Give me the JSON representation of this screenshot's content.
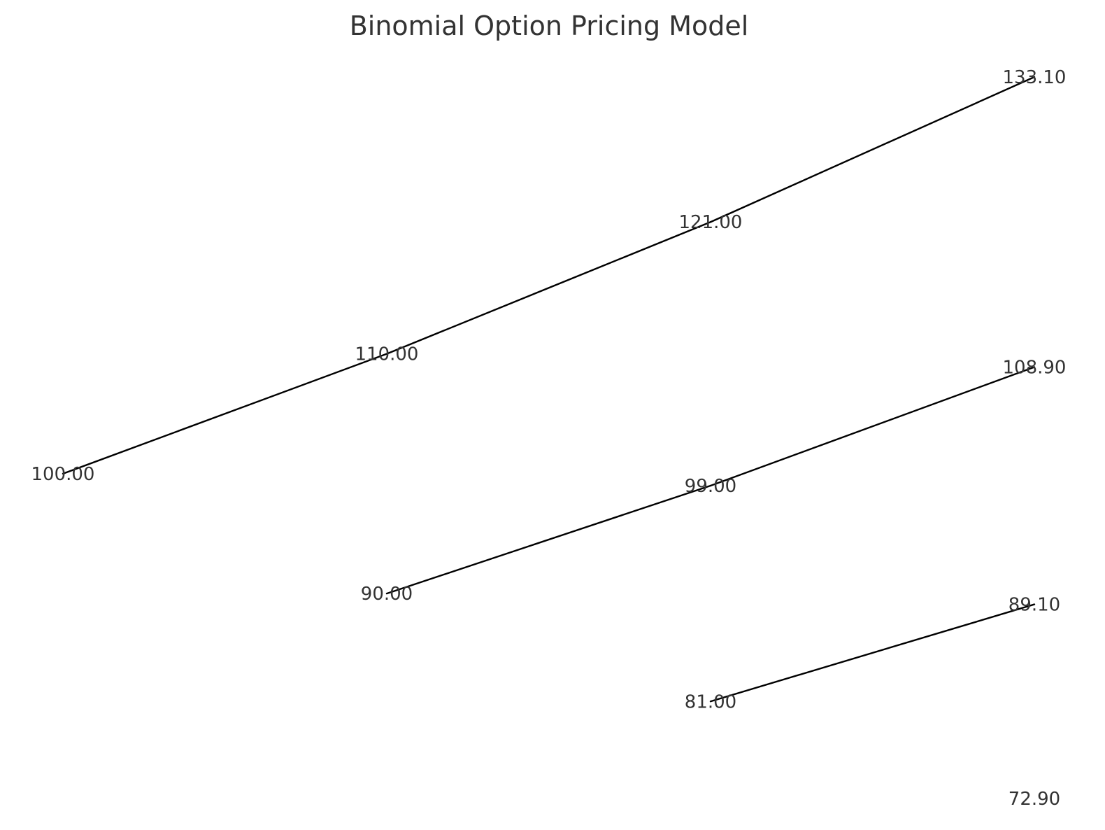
{
  "chart_data": {
    "type": "line",
    "title": "Binomial Option Pricing Model",
    "xlabel": "",
    "ylabel": "",
    "grid": false,
    "axes_visible": false,
    "nodes": [
      {
        "step": 0,
        "label": "100.00"
      },
      {
        "step": 1,
        "label": "110.00"
      },
      {
        "step": 1,
        "label": "90.00"
      },
      {
        "step": 2,
        "label": "121.00"
      },
      {
        "step": 2,
        "label": "99.00"
      },
      {
        "step": 2,
        "label": "81.00"
      },
      {
        "step": 3,
        "label": "133.10"
      },
      {
        "step": 3,
        "label": "108.90"
      },
      {
        "step": 3,
        "label": "89.10"
      },
      {
        "step": 3,
        "label": "72.90"
      }
    ],
    "series": [
      {
        "points": [
          {
            "x": 0,
            "y": 100.0
          },
          {
            "x": 1,
            "y": 110.0
          },
          {
            "x": 2,
            "y": 121.0
          },
          {
            "x": 3,
            "y": 133.1
          }
        ]
      },
      {
        "points": [
          {
            "x": 1,
            "y": 90.0
          },
          {
            "x": 2,
            "y": 99.0
          },
          {
            "x": 3,
            "y": 108.9
          }
        ]
      },
      {
        "points": [
          {
            "x": 2,
            "y": 81.0
          },
          {
            "x": 3,
            "y": 89.1
          }
        ]
      }
    ],
    "xlim": [
      0,
      3
    ]
  },
  "colors": {
    "line": "#000000",
    "text": "#333333",
    "background": "#ffffff"
  }
}
